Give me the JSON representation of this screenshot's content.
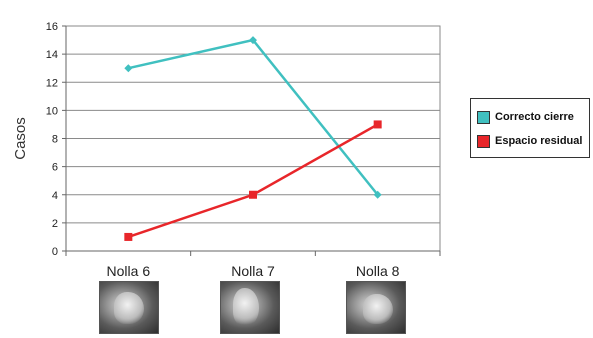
{
  "chart_data": {
    "type": "line",
    "categories": [
      "Nolla 6",
      "Nolla 7",
      "Nolla 8"
    ],
    "series": [
      {
        "name": "Correcto cierre",
        "values": [
          13,
          15,
          4
        ],
        "color": "#40c0c0",
        "marker": "diamond"
      },
      {
        "name": "Espacio residual",
        "values": [
          1,
          4,
          9
        ],
        "color": "#e8262a",
        "marker": "square"
      }
    ],
    "ylabel": "Casos",
    "ylim": [
      0,
      16
    ],
    "yticks": [
      "0",
      "2",
      "4",
      "6",
      "8",
      "10",
      "12",
      "14",
      "16"
    ],
    "grid": true,
    "legend_position": "right"
  },
  "thumbnails": [
    {
      "icon": "xray-tooth-icon",
      "category": "Nolla 6"
    },
    {
      "icon": "xray-tooth-icon",
      "category": "Nolla 7"
    },
    {
      "icon": "xray-tooth-icon",
      "category": "Nolla 8"
    }
  ]
}
